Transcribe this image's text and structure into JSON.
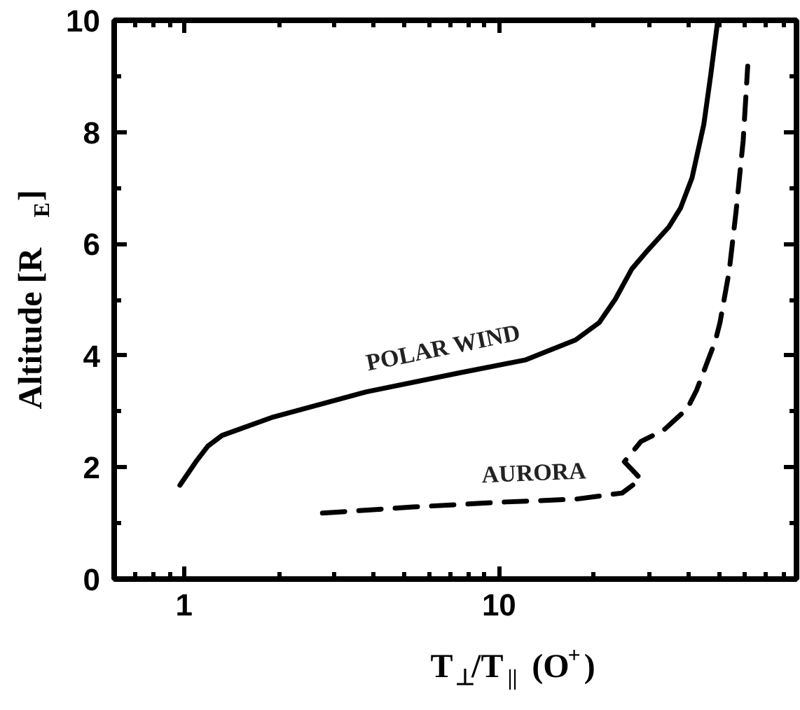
{
  "chart_data": {
    "type": "line",
    "xlabel": "T$_{⊥}$/T$_{||}$ (O$^{+}$)",
    "ylabel": "Altitude [R$_{E}$]",
    "log": "x",
    "xlim": [
      0.6,
      88
    ],
    "xticks": [
      1,
      10
    ],
    "ylim": [
      0,
      10
    ],
    "yticks": [
      0,
      2,
      4,
      6,
      8,
      10
    ],
    "grid": false,
    "series": [
      {
        "color": "#000000",
        "line_style": "solid",
        "x": [
          0.97,
          1.1,
          1.19,
          1.32,
          1.92,
          3.79,
          7.49,
          12.1,
          17.5,
          20.8,
          23.4,
          26.4,
          29.2,
          34.6,
          37.7,
          41.0,
          44.7,
          47.0,
          49.5
        ],
        "values": [
          1.68,
          2.13,
          2.38,
          2.57,
          2.9,
          3.35,
          3.69,
          3.92,
          4.28,
          4.59,
          5.01,
          5.55,
          5.84,
          6.3,
          6.64,
          7.18,
          8.14,
          9.02,
          10.0
        ]
      },
      {
        "color": "#000000",
        "line_style": "dashed",
        "x": [
          2.75,
          5.33,
          10.5,
          17.5,
          24.6,
          28.2,
          25.0,
          28.2,
          33.4,
          39.6,
          42.4,
          48.6,
          50.3,
          53.8,
          56.6,
          59.6,
          61.6
        ],
        "values": [
          1.18,
          1.29,
          1.38,
          1.43,
          1.54,
          1.79,
          2.1,
          2.46,
          2.67,
          3.05,
          3.38,
          4.26,
          4.59,
          5.51,
          6.59,
          7.85,
          9.18
        ]
      }
    ],
    "annotations": [
      "POLAR WIND",
      "AURORA"
    ]
  }
}
